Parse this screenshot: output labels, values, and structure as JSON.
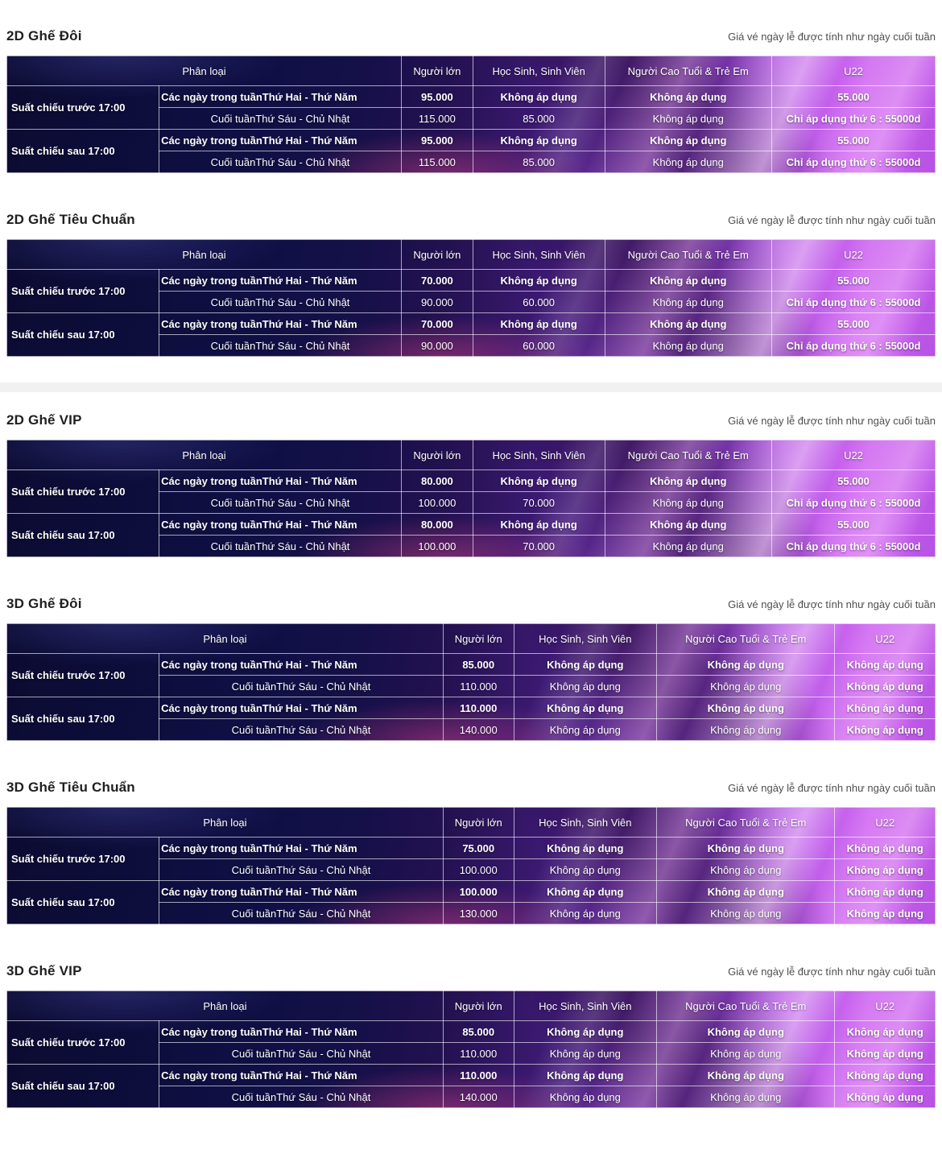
{
  "note": "Giá vé ngày lễ được tính như ngày cuối tuần",
  "columns": {
    "category": "Phân loại",
    "adult": "Người lớn",
    "student": "Học Sinh, Sinh Viên",
    "senior_child": "Người Cao Tuổi & Trẻ Em",
    "u22": "U22"
  },
  "row_labels": {
    "before_17": "Suất chiếu trước 17:00",
    "after_17": "Suất chiếu sau 17:00",
    "weekday": "Các ngày trong tuầnThứ Hai - Thứ Năm",
    "weekend": "Cuối tuầnThứ Sáu - Chủ Nhật"
  },
  "colors": {
    "table_dark_navy": "#0f0f44",
    "table_magenta": "#c957ef",
    "title_text": "#1f1f1f",
    "note_text": "#4e4e4e"
  },
  "tables": [
    {
      "title": "2D Ghế Đôi",
      "layout": "2d",
      "rows": [
        [
          "95.000",
          "Không áp dụng",
          "Không áp dụng",
          "55.000"
        ],
        [
          "115.000",
          "85.000",
          "Không áp dụng",
          "Chỉ áp dụng thứ 6 : 55000d"
        ],
        [
          "95.000",
          "Không áp dụng",
          "Không áp dụng",
          "55.000"
        ],
        [
          "115.000",
          "85.000",
          "Không áp dụng",
          "Chỉ áp dụng thứ 6 : 55000d"
        ]
      ]
    },
    {
      "title": "2D Ghế Tiêu Chuẩn",
      "layout": "2d",
      "rows": [
        [
          "70.000",
          "Không áp dụng",
          "Không áp dụng",
          "55.000"
        ],
        [
          "90.000",
          "60.000",
          "Không áp dụng",
          "Chỉ áp dụng thứ 6 : 55000d"
        ],
        [
          "70.000",
          "Không áp dụng",
          "Không áp dụng",
          "55.000"
        ],
        [
          "90.000",
          "60.000",
          "Không áp dụng",
          "Chỉ áp dụng thứ 6 : 55000d"
        ]
      ]
    },
    {
      "title": "2D Ghế VIP",
      "layout": "2d",
      "rows": [
        [
          "80.000",
          "Không áp dụng",
          "Không áp dụng",
          "55.000"
        ],
        [
          "100.000",
          "70.000",
          "Không áp dụng",
          "Chỉ áp dụng thứ 6 : 55000d"
        ],
        [
          "80.000",
          "Không áp dụng",
          "Không áp dụng",
          "55.000"
        ],
        [
          "100.000",
          "70.000",
          "Không áp dụng",
          "Chỉ áp dụng thứ 6 : 55000d"
        ]
      ]
    },
    {
      "title": "3D Ghế Đôi",
      "layout": "3d",
      "rows": [
        [
          "85.000",
          "Không áp dụng",
          "Không áp dụng",
          "Không áp dụng"
        ],
        [
          "110.000",
          "Không áp dụng",
          "Không áp dụng",
          "Không áp dụng"
        ],
        [
          "110.000",
          "Không áp dụng",
          "Không áp dụng",
          "Không áp dụng"
        ],
        [
          "140.000",
          "Không áp dụng",
          "Không áp dụng",
          "Không áp dụng"
        ]
      ]
    },
    {
      "title": "3D Ghế Tiêu Chuẩn",
      "layout": "3d",
      "rows": [
        [
          "75.000",
          "Không áp dụng",
          "Không áp dụng",
          "Không áp dụng"
        ],
        [
          "100.000",
          "Không áp dụng",
          "Không áp dụng",
          "Không áp dụng"
        ],
        [
          "100.000",
          "Không áp dụng",
          "Không áp dụng",
          "Không áp dụng"
        ],
        [
          "130.000",
          "Không áp dụng",
          "Không áp dụng",
          "Không áp dụng"
        ]
      ]
    },
    {
      "title": "3D Ghế VIP",
      "layout": "3d",
      "rows": [
        [
          "85.000",
          "Không áp dụng",
          "Không áp dụng",
          "Không áp dụng"
        ],
        [
          "110.000",
          "Không áp dụng",
          "Không áp dụng",
          "Không áp dụng"
        ],
        [
          "110.000",
          "Không áp dụng",
          "Không áp dụng",
          "Không áp dụng"
        ],
        [
          "140.000",
          "Không áp dụng",
          "Không áp dụng",
          "Không áp dụng"
        ]
      ]
    }
  ]
}
